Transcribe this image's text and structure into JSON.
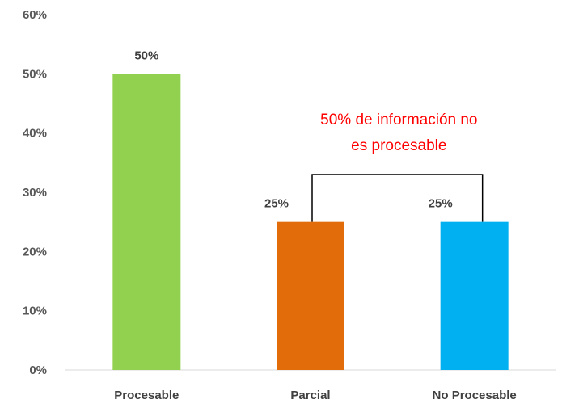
{
  "chart_data": {
    "type": "bar",
    "categories": [
      "Procesable",
      "Parcial",
      "No Procesable"
    ],
    "values": [
      50,
      25,
      25
    ],
    "data_labels": [
      "50%",
      "25%",
      "25%"
    ],
    "colors": [
      "#92d050",
      "#e36c0a",
      "#00b0f0"
    ],
    "ylim": [
      0,
      60
    ],
    "yticks": [
      0,
      10,
      20,
      30,
      40,
      50,
      60
    ],
    "ytick_labels": [
      "0%",
      "10%",
      "20%",
      "30%",
      "40%",
      "50%",
      "60%"
    ],
    "grid": false,
    "legend": "none",
    "annotation": {
      "lines": [
        "50% de información no",
        "es procesable"
      ],
      "color": "#ff0000",
      "bracket_between": [
        "Parcial",
        "No Procesable"
      ]
    }
  }
}
